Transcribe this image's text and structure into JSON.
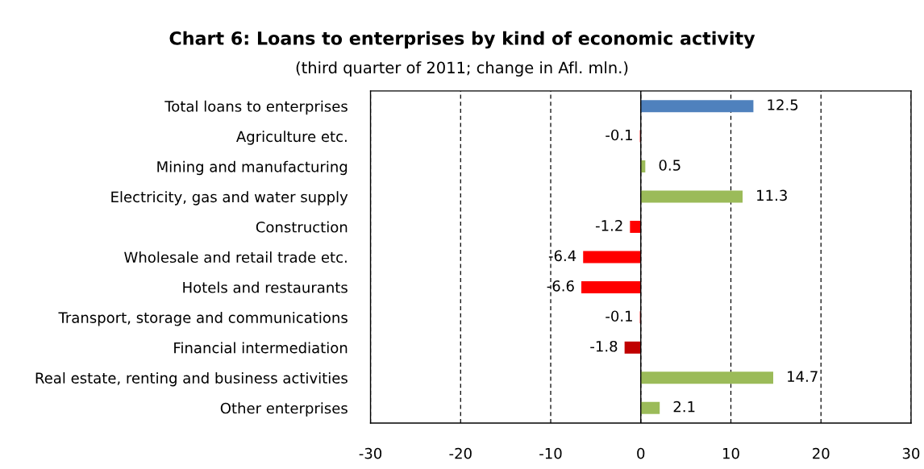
{
  "chart_data": {
    "type": "bar",
    "orientation": "horizontal",
    "title": "Chart 6: Loans to enterprises by kind of economic activity",
    "subtitle": "(third quarter of 2011; change in Afl. mln.)",
    "categories": [
      "Total loans to enterprises",
      "Agriculture etc.",
      "Mining and manufacturing",
      "Electricity, gas and water supply",
      "Construction",
      "Wholesale and retail trade etc.",
      "Hotels and restaurants",
      "Transport, storage and communications",
      "Financial intermediation",
      "Real estate, renting and business activities",
      "Other enterprises"
    ],
    "values": [
      12.5,
      -0.1,
      0.5,
      11.3,
      -1.2,
      -6.4,
      -6.6,
      -0.1,
      -1.8,
      14.7,
      2.1
    ],
    "colors": [
      "#4f81bd",
      "#ff0000",
      "#9bbb59",
      "#9bbb59",
      "#ff0000",
      "#ff0000",
      "#ff0000",
      "#ff0000",
      "#c00000",
      "#9bbb59",
      "#9bbb59"
    ],
    "xlim": [
      -30,
      30
    ],
    "xticks": [
      {
        "value": -30,
        "label": "-30"
      },
      {
        "value": -20,
        "label": "-20"
      },
      {
        "value": -10,
        "label": "-10"
      },
      0,
      10,
      20,
      30
    ],
    "grid": "x",
    "data_labels": true,
    "legend": false
  }
}
